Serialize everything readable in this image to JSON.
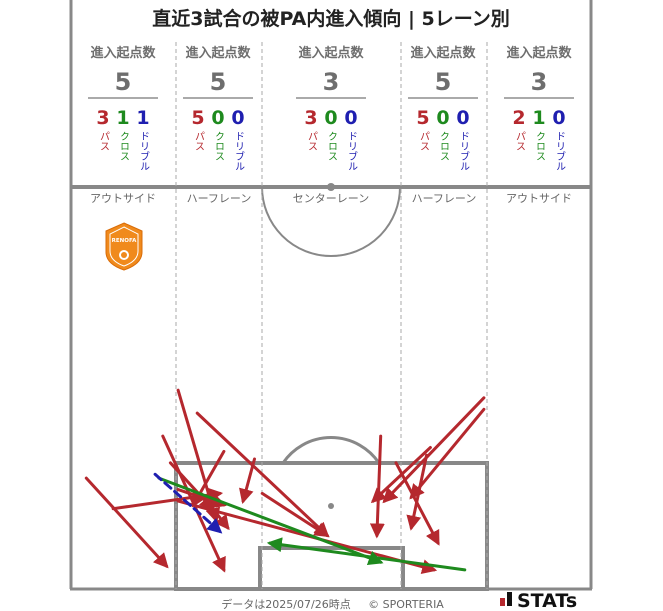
{
  "title": "直近3試合の被PA内進入傾向 | 5レーン別",
  "lanes": [
    {
      "header": "進入起点数",
      "total": "5",
      "name": "アウトサイド",
      "pass": "3",
      "cross": "1",
      "dribble": "1"
    },
    {
      "header": "進入起点数",
      "total": "5",
      "name": "ハーフレーン",
      "pass": "5",
      "cross": "0",
      "dribble": "0"
    },
    {
      "header": "進入起点数",
      "total": "3",
      "name": "センターレーン",
      "pass": "3",
      "cross": "0",
      "dribble": "0"
    },
    {
      "header": "進入起点数",
      "total": "5",
      "name": "ハーフレーン",
      "pass": "5",
      "cross": "0",
      "dribble": "0"
    },
    {
      "header": "進入起点数",
      "total": "3",
      "name": "アウトサイド",
      "pass": "2",
      "cross": "1",
      "dribble": "0"
    }
  ],
  "labels": {
    "pass": "パス",
    "cross": "クロス",
    "dribble": "ドリブル"
  },
  "colors": {
    "pass": "#b5282e",
    "cross": "#1e8a1e",
    "dribble": "#1f1fb0",
    "pitch": "#888888",
    "lane_divider": "#aaaaaa"
  },
  "team_logo": "RENOFA",
  "footer": {
    "date": "データは2025/07/26時点",
    "copyright": "© SPORTERIA",
    "brand": "STATs"
  },
  "chart_data": {
    "type": "arrow-map",
    "pitch": "attacking third, 68 x 35 m",
    "x_unit": "m across pitch (0 = left touchline)",
    "y_unit": "m from goal line",
    "entries": [
      {
        "type": "pass",
        "x0": 14.0,
        "y0": 26.0,
        "x1": 19.0,
        "y1": 9.0
      },
      {
        "type": "pass",
        "x0": 12.0,
        "y0": 20.0,
        "x1": 20.0,
        "y1": 2.5
      },
      {
        "type": "pass",
        "x0": 2.0,
        "y0": 14.5,
        "x1": 12.5,
        "y1": 3.0
      },
      {
        "type": "pass",
        "x0": 5.5,
        "y0": 10.5,
        "x1": 19.5,
        "y1": 12.5
      },
      {
        "type": "pass",
        "x0": 13.0,
        "y0": 16.5,
        "x1": 18.5,
        "y1": 10.5
      },
      {
        "type": "pass",
        "x0": 14.0,
        "y0": 13.0,
        "x1": 20.0,
        "y1": 11.0
      },
      {
        "type": "pass",
        "x0": 20.0,
        "y0": 18.0,
        "x1": 16.0,
        "y1": 11.0
      },
      {
        "type": "pass",
        "x0": 14.0,
        "y0": 11.5,
        "x1": 47.5,
        "y1": 2.5
      },
      {
        "type": "pass",
        "x0": 17.0,
        "y0": 12.5,
        "x1": 20.5,
        "y1": 8.0
      },
      {
        "type": "pass",
        "x0": 16.5,
        "y0": 23.0,
        "x1": 33.5,
        "y1": 7.0
      },
      {
        "type": "pass",
        "x0": 25.0,
        "y0": 12.5,
        "x1": 33.5,
        "y1": 7.0
      },
      {
        "type": "pass",
        "x0": 24.0,
        "y0": 17.0,
        "x1": 22.5,
        "y1": 11.5
      },
      {
        "type": "pass",
        "x0": 40.5,
        "y0": 20.0,
        "x1": 40.0,
        "y1": 7.0
      },
      {
        "type": "pass",
        "x0": 42.5,
        "y0": 16.5,
        "x1": 48.0,
        "y1": 6.0
      },
      {
        "type": "pass",
        "x0": 46.5,
        "y0": 17.5,
        "x1": 44.5,
        "y1": 8.0
      },
      {
        "type": "pass",
        "x0": 47.0,
        "y0": 18.5,
        "x1": 39.5,
        "y1": 11.5
      },
      {
        "type": "pass",
        "x0": 54.0,
        "y0": 25.0,
        "x1": 41.0,
        "y1": 11.5
      },
      {
        "type": "pass",
        "x0": 54.0,
        "y0": 23.5,
        "x1": 44.5,
        "y1": 12.0
      },
      {
        "type": "cross",
        "x0": 11.5,
        "y0": 14.5,
        "x1": 40.5,
        "y1": 3.5
      },
      {
        "type": "cross",
        "x0": 51.5,
        "y0": 2.5,
        "x1": 26.0,
        "y1": 6.0
      },
      {
        "type": "dribble",
        "x0": 11.0,
        "y0": 15.0,
        "x1": 19.5,
        "y1": 7.5
      }
    ]
  }
}
